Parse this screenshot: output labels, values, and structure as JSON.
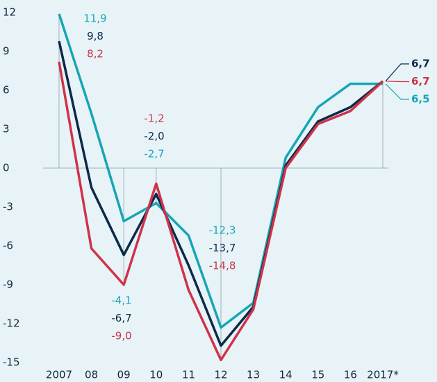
{
  "chart_data": {
    "type": "line",
    "categories": [
      "2007",
      "08",
      "09",
      "10",
      "11",
      "12",
      "13",
      "14",
      "15",
      "16",
      "2017*"
    ],
    "series": [
      {
        "color": "#17a5b5",
        "values": [
          11.9,
          4.2,
          -4.1,
          -2.7,
          -5.2,
          -12.3,
          -10.4,
          0.8,
          4.7,
          6.5,
          6.5
        ],
        "value_labels": [
          "11,9",
          null,
          "-4,1",
          "-2,7",
          null,
          "-12,3",
          null,
          null,
          null,
          null,
          "6,5"
        ]
      },
      {
        "color": "#0c2a48",
        "values": [
          9.8,
          -1.5,
          -6.7,
          -2.0,
          -7.5,
          -13.7,
          -10.7,
          0.2,
          3.6,
          4.7,
          6.7
        ],
        "value_labels": [
          "9,8",
          null,
          "-6,7",
          "-2,0",
          null,
          "-13,7",
          null,
          null,
          null,
          null,
          "6,7"
        ]
      },
      {
        "color": "#cf3349",
        "values": [
          8.2,
          -6.2,
          -9.0,
          -1.2,
          -9.4,
          -14.8,
          -10.9,
          0.0,
          3.4,
          4.4,
          6.7
        ],
        "value_labels": [
          "8,2",
          null,
          "-9,0",
          "-1,2",
          null,
          "-14,8",
          null,
          null,
          null,
          null,
          "6,7"
        ]
      }
    ],
    "ylim": [
      -15,
      12
    ],
    "yticks": [
      -15,
      -12,
      -9,
      -6,
      -3,
      0,
      3,
      6,
      9,
      12
    ]
  }
}
